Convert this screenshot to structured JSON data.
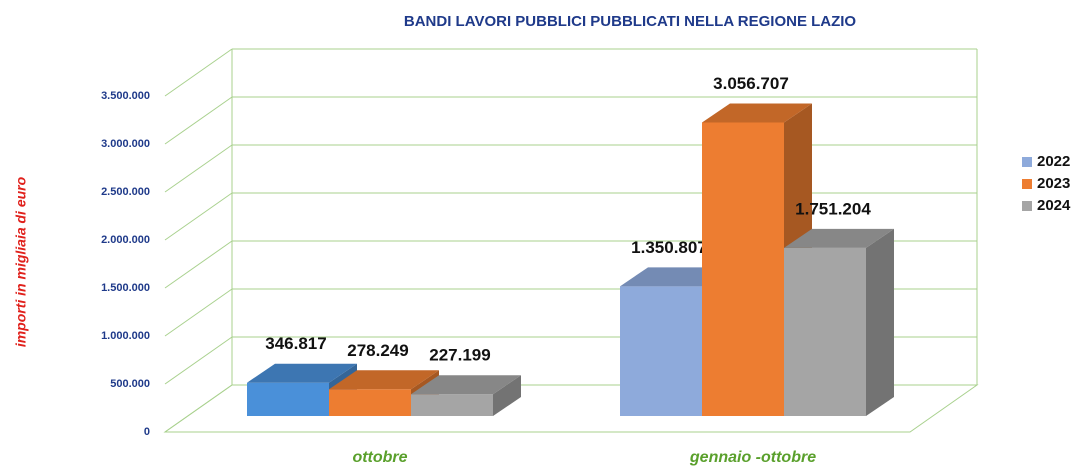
{
  "chart_data": {
    "type": "bar3d",
    "title": "BANDI LAVORI PUBBLICI PUBBLICATI NELLA REGIONE LAZIO",
    "y_label": "importi in migliaia di euro",
    "categories": [
      "ottobre",
      "gennaio -ottobre"
    ],
    "series": [
      {
        "name": "2022",
        "color": "#8eaadb",
        "colors": [
          "#4a90d9",
          "#8eaadb"
        ],
        "values": [
          346817,
          1350807
        ],
        "value_labels": [
          "346.817",
          "1.350.807"
        ]
      },
      {
        "name": "2023",
        "color": "#ed7d31",
        "values": [
          278249,
          3056707
        ],
        "value_labels": [
          "278.249",
          "3.056.707"
        ]
      },
      {
        "name": "2024",
        "color": "#a5a5a5",
        "values": [
          227199,
          1751204
        ],
        "value_labels": [
          "227.199",
          "1.751.204"
        ]
      }
    ],
    "ylim": [
      0,
      3500000
    ],
    "yticks": [
      0,
      {
        "value": 500000,
        "label": "500.000"
      },
      {
        "value": 1000000,
        "label": "1.000.000"
      },
      {
        "value": 1500000,
        "label": "1.500.000"
      },
      {
        "value": 2000000,
        "label": "2.000.000"
      },
      {
        "value": 2500000,
        "label": "2.500.000"
      },
      {
        "value": 3000000,
        "label": "3.000.000"
      },
      {
        "value": 3500000,
        "label": "3.500.000"
      }
    ],
    "grid": true,
    "grid_color": "#a9d18e",
    "legend": "right"
  }
}
